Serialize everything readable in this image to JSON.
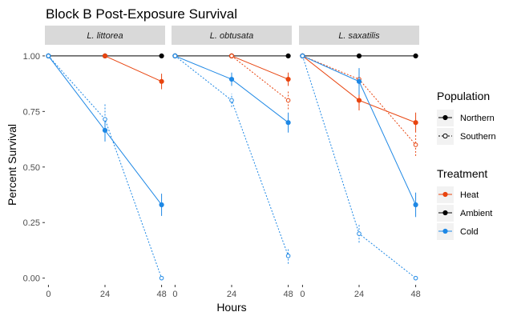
{
  "chart_data": {
    "type": "line",
    "title": "Block B Post-Exposure Survival",
    "xlabel": "Hours",
    "ylabel": "Percent Survival",
    "x_ticks": [
      0,
      24,
      48
    ],
    "y_ticks": [
      0.0,
      0.25,
      0.5,
      0.75,
      1.0
    ],
    "y_tick_labels": [
      "0.00",
      "0.25",
      "0.50",
      "0.75",
      "1.00"
    ],
    "xlim": [
      -1.5,
      49.5
    ],
    "ylim": [
      -0.03,
      1.05
    ],
    "grid": false,
    "legend_position": "right",
    "legend": {
      "population_title": "Population",
      "population_items": [
        {
          "name": "Northern",
          "style": "solid",
          "marker": "filled"
        },
        {
          "name": "Southern",
          "style": "dotted",
          "marker": "open"
        }
      ],
      "treatment_title": "Treatment",
      "treatment_items": [
        {
          "name": "Heat",
          "color": "#E8440F"
        },
        {
          "name": "Ambient",
          "color": "#000000"
        },
        {
          "name": "Cold",
          "color": "#1E88E5"
        }
      ]
    },
    "panels": [
      {
        "label": "L. littorea",
        "series": [
          {
            "treatment": "Ambient",
            "population": "Northern",
            "points": [
              [
                0,
                1.0
              ],
              [
                24,
                1.0
              ],
              [
                48,
                1.0
              ]
            ]
          },
          {
            "treatment": "Heat",
            "population": "Northern",
            "points": [
              [
                24,
                1.0
              ],
              [
                48,
                0.885
              ]
            ],
            "errors": [
              0,
              0.035
            ]
          },
          {
            "treatment": "Cold",
            "population": "Northern",
            "points": [
              [
                0,
                1.0
              ],
              [
                24,
                0.665
              ],
              [
                48,
                0.33
              ]
            ],
            "errors": [
              0,
              0.05,
              0.05
            ]
          },
          {
            "treatment": "Cold",
            "population": "Southern",
            "points": [
              [
                0,
                1.0
              ],
              [
                24,
                0.715
              ],
              [
                48,
                0.0
              ]
            ],
            "errors": [
              0,
              0.07,
              0
            ]
          }
        ]
      },
      {
        "label": "L. obtusata",
        "series": [
          {
            "treatment": "Ambient",
            "population": "Northern",
            "points": [
              [
                0,
                1.0
              ],
              [
                24,
                1.0
              ],
              [
                48,
                1.0
              ]
            ]
          },
          {
            "treatment": "Heat",
            "population": "Northern",
            "points": [
              [
                24,
                1.0
              ],
              [
                48,
                0.895
              ]
            ],
            "errors": [
              0,
              0.03
            ]
          },
          {
            "treatment": "Heat",
            "population": "Southern",
            "points": [
              [
                24,
                1.0
              ],
              [
                48,
                0.8
              ]
            ],
            "errors": [
              0,
              0.04
            ]
          },
          {
            "treatment": "Cold",
            "population": "Northern",
            "points": [
              [
                0,
                1.0
              ],
              [
                24,
                0.895
              ],
              [
                48,
                0.7
              ]
            ],
            "errors": [
              0,
              0.03,
              0.045
            ]
          },
          {
            "treatment": "Cold",
            "population": "Southern",
            "points": [
              [
                0,
                1.0
              ],
              [
                24,
                0.8
              ],
              [
                48,
                0.1
              ]
            ],
            "errors": [
              0,
              0.03,
              0.035
            ]
          }
        ]
      },
      {
        "label": "L. saxatilis",
        "series": [
          {
            "treatment": "Ambient",
            "population": "Northern",
            "points": [
              [
                0,
                1.0
              ],
              [
                24,
                1.0
              ],
              [
                48,
                1.0
              ]
            ]
          },
          {
            "treatment": "Heat",
            "population": "Northern",
            "points": [
              [
                0,
                1.0
              ],
              [
                24,
                0.8
              ],
              [
                48,
                0.7
              ]
            ],
            "errors": [
              0,
              0.045,
              0.045
            ]
          },
          {
            "treatment": "Heat",
            "population": "Southern",
            "points": [
              [
                0,
                1.0
              ],
              [
                24,
                0.895
              ],
              [
                48,
                0.6
              ]
            ],
            "errors": [
              0,
              0.04,
              0.05
            ]
          },
          {
            "treatment": "Cold",
            "population": "Northern",
            "points": [
              [
                0,
                1.0
              ],
              [
                24,
                0.885
              ],
              [
                48,
                0.33
              ]
            ],
            "errors": [
              0,
              0.06,
              0.055
            ]
          },
          {
            "treatment": "Cold",
            "population": "Southern",
            "points": [
              [
                0,
                1.0
              ],
              [
                24,
                0.2
              ],
              [
                48,
                0.0
              ]
            ],
            "errors": [
              0,
              0.04,
              0
            ]
          }
        ]
      }
    ]
  }
}
